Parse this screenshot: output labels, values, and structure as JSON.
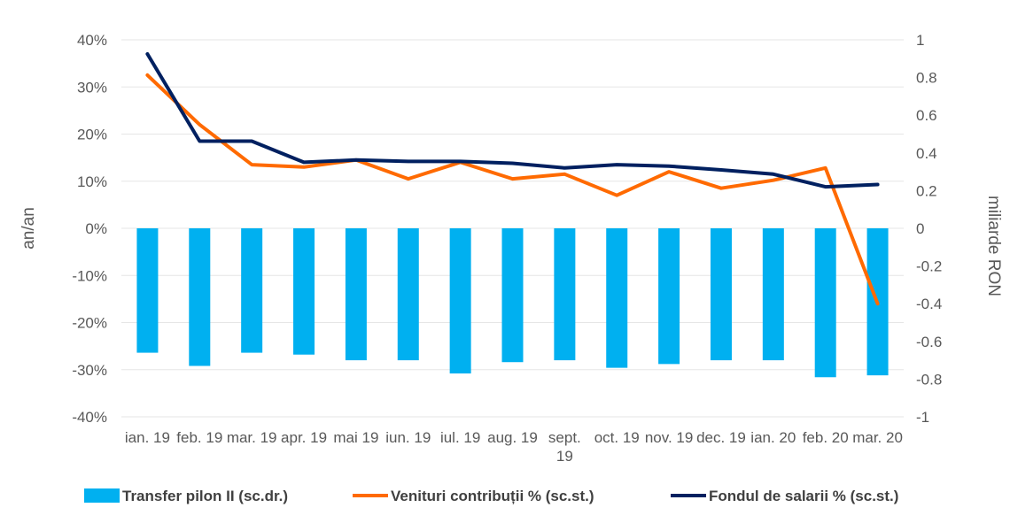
{
  "chart_data": {
    "type": "bar+line",
    "categories": [
      "ian. 19",
      "feb. 19",
      "mar. 19",
      "apr. 19",
      "mai 19",
      "iun. 19",
      "iul. 19",
      "aug. 19",
      "sept. 19",
      "oct. 19",
      "nov. 19",
      "dec. 19",
      "ian. 20",
      "feb. 20",
      "mar. 20"
    ],
    "category_labels": [
      [
        "ian. 19"
      ],
      [
        "feb. 19"
      ],
      [
        "mar. 19"
      ],
      [
        "apr. 19"
      ],
      [
        "mai 19"
      ],
      [
        "iun. 19"
      ],
      [
        "iul. 19"
      ],
      [
        "aug. 19"
      ],
      [
        "sept.",
        "19"
      ],
      [
        "oct. 19"
      ],
      [
        "nov. 19"
      ],
      [
        "dec. 19"
      ],
      [
        "ian. 20"
      ],
      [
        "feb. 20"
      ],
      [
        "mar. 20"
      ]
    ],
    "left_axis": {
      "label": "an/an",
      "ticks": [
        "40%",
        "30%",
        "20%",
        "10%",
        "0%",
        "-10%",
        "-20%",
        "-30%",
        "-40%"
      ],
      "range": [
        -40,
        40
      ]
    },
    "right_axis": {
      "label": "miliarde RON",
      "ticks": [
        "1",
        "0.8",
        "0.6",
        "0.4",
        "0.2",
        "0",
        "-0.2",
        "-0.4",
        "-0.6",
        "-0.8",
        "-1"
      ],
      "range": [
        -1,
        1
      ]
    },
    "series": [
      {
        "name": "Transfer pilon II (sc.dr.)",
        "type": "bar",
        "axis": "right",
        "color": "#00B0F0",
        "values": [
          -0.66,
          -0.73,
          -0.66,
          -0.67,
          -0.7,
          -0.7,
          -0.77,
          -0.71,
          -0.7,
          -0.74,
          -0.72,
          -0.7,
          -0.7,
          -0.79,
          -0.78
        ]
      },
      {
        "name": "Venituri contribuții % (sc.st.)",
        "type": "line",
        "axis": "left",
        "color": "#FF6A00",
        "values": [
          32.5,
          22,
          13.5,
          13,
          14.5,
          10.5,
          14,
          10.5,
          11.5,
          7,
          12,
          8.5,
          10.2,
          12.8,
          -16
        ]
      },
      {
        "name": "Fondul de salarii % (sc.st.)",
        "type": "line",
        "axis": "left",
        "color": "#002060",
        "values": [
          37,
          18.5,
          18.5,
          14,
          14.5,
          14.2,
          14.2,
          13.8,
          12.8,
          13.5,
          13.2,
          12.4,
          11.5,
          8.8,
          9.3
        ]
      }
    ],
    "grid": true,
    "legend_position": "bottom"
  }
}
